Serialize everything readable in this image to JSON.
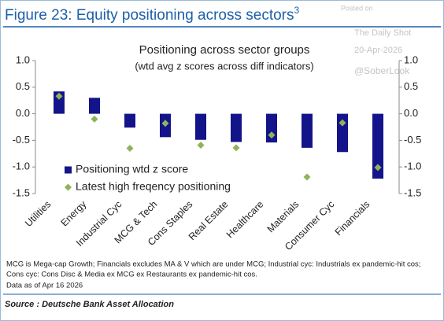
{
  "figure_title": "Figure 23: Equity positioning across sectors",
  "figure_title_superscript": "3",
  "watermark": [
    "Posted on",
    "The Daily Shot",
    "20-Apr-2026",
    "@SoberLook"
  ],
  "chart_data": {
    "type": "bar",
    "title": "Positioning across sector groups",
    "subtitle": "(wtd avg z scores across diff indicators)",
    "categories": [
      "Utilities",
      "Energy",
      "Industrial Cyc",
      "MCG & Tech",
      "Cons Staples",
      "Real Estate",
      "Healthcare",
      "Materials",
      "Consumer Cyc",
      "Financials"
    ],
    "series": [
      {
        "name": "Positioning wtd z score",
        "type": "bar",
        "color": "#14148a",
        "values": [
          0.42,
          0.3,
          -0.26,
          -0.44,
          -0.49,
          -0.53,
          -0.54,
          -0.64,
          -0.72,
          -1.22
        ]
      },
      {
        "name": "Latest high freqency positioning",
        "type": "scatter",
        "marker": "diamond",
        "color": "#8cb55a",
        "values": [
          0.33,
          -0.1,
          -0.65,
          -0.18,
          -0.59,
          -0.64,
          -0.4,
          -1.19,
          -0.17,
          -1.01
        ]
      }
    ],
    "ylim": [
      -1.5,
      1.0
    ],
    "yticks": [
      {
        "value": 1.0,
        "label": "1.0"
      },
      {
        "value": 0.5,
        "label": "0.5"
      },
      {
        "value": 0.0,
        "label": "0.0"
      },
      {
        "value": -0.5,
        "label": "-0.5"
      },
      {
        "value": -1.0,
        "label": "-1.0"
      },
      {
        "value": -1.5,
        "label": "-1.5"
      }
    ],
    "y2lim": [
      -1.5,
      1.0
    ],
    "y2ticks": [
      {
        "value": 1.0,
        "label": "1.0"
      },
      {
        "value": 0.5,
        "label": "0.5"
      },
      {
        "value": 0.0,
        "label": "0.0"
      },
      {
        "value": -0.5,
        "label": "-0.5"
      },
      {
        "value": -1.0,
        "label": "-1.0"
      },
      {
        "value": -1.5,
        "label": "-1.5"
      }
    ],
    "grid": false,
    "legend": "lower left"
  },
  "notes": [
    "MCG is Mega-cap Growth; Financials excludes MA & V which are under MCG;  Industrial cyc: Industrials ex pandemic-hit cos;",
    "Cons cyc: Cons Disc & Media ex MCG ex Restaurants ex pandemic-hit cos.",
    "Data as of Apr 16 2026"
  ],
  "source": "Source : Deutsche Bank Asset Allocation"
}
